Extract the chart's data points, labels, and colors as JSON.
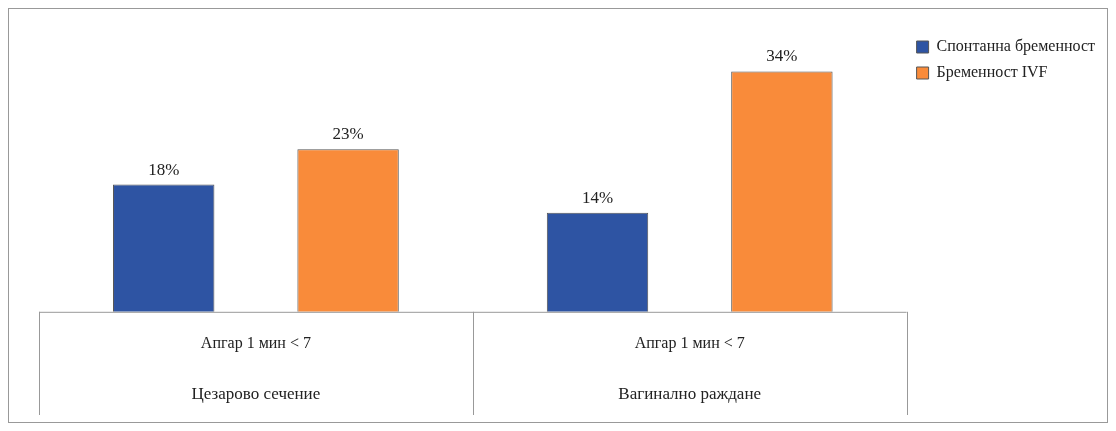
{
  "chart_data": {
    "type": "bar",
    "categories": [
      "Апгар 1 мин < 7",
      "Апгар 1 мин < 7"
    ],
    "annotations": [
      "Цезарово сечение",
      "Вагинално раждане"
    ],
    "series": [
      {
        "name": "Спонтанна бременност",
        "color": "#2e54a3",
        "values": [
          18,
          14
        ],
        "value_labels": [
          "18%",
          "14%"
        ]
      },
      {
        "name": "Бременност IVF",
        "color": "#f98b3a",
        "values": [
          23,
          34
        ],
        "value_labels": [
          "23%",
          "34%"
        ]
      }
    ],
    "legend": "top right"
  }
}
